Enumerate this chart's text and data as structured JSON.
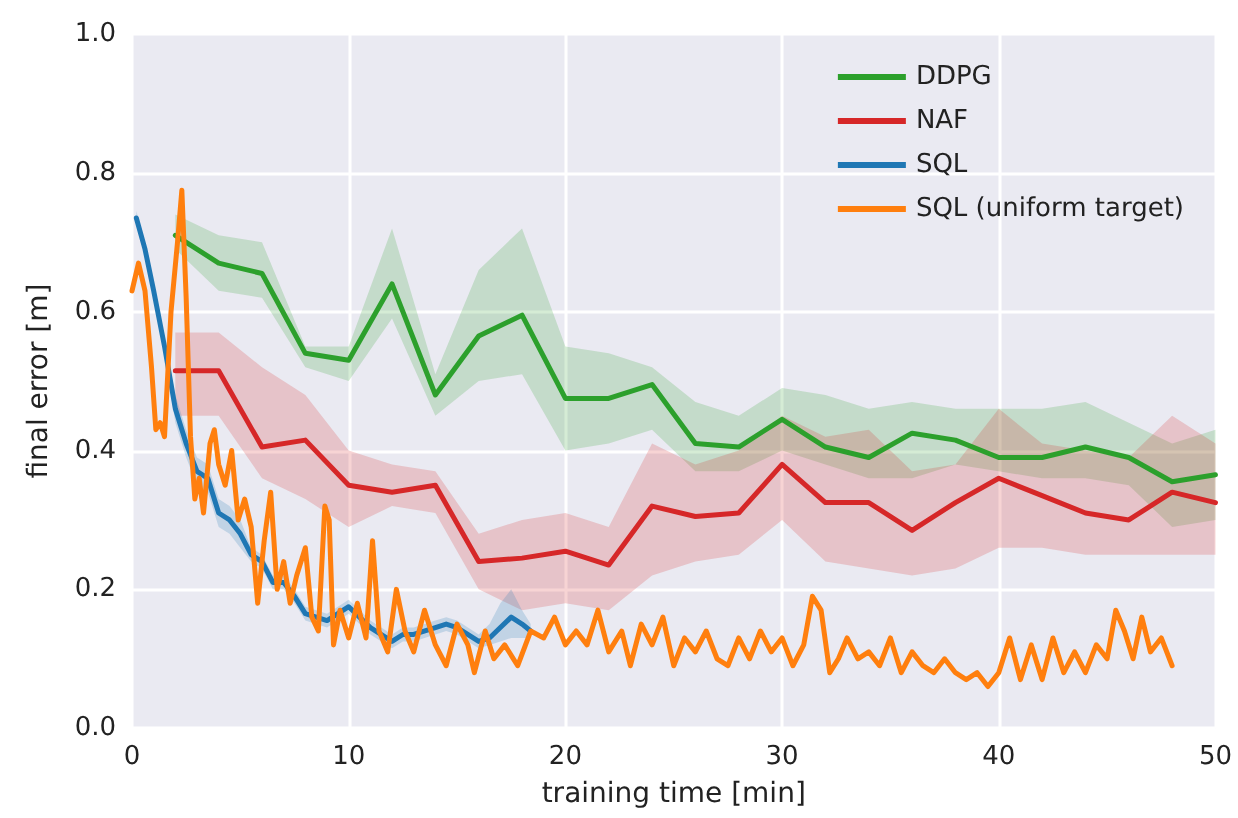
{
  "chart_data": {
    "type": "line",
    "xlabel": "training time [min]",
    "ylabel": "final error [m]",
    "xlim": [
      0,
      50
    ],
    "xticks": [
      0,
      10,
      20,
      30,
      40,
      50
    ],
    "ylim": [
      0,
      1
    ],
    "yticks": [
      {
        "value": 0,
        "label": "0.0"
      },
      {
        "value": 0.2,
        "label": "0.2"
      },
      {
        "value": 0.4,
        "label": "0.4"
      },
      {
        "value": 0.6,
        "label": "0.6"
      },
      {
        "value": 0.8,
        "label": "0.8"
      },
      {
        "value": 1,
        "label": "1.0"
      }
    ],
    "grid": true,
    "legend": "top right",
    "marker": "none",
    "line_style": "solid",
    "series": [
      {
        "name": "DDPG",
        "color": "#2ca02c",
        "x": [
          2,
          4,
          6,
          8,
          10,
          12,
          14,
          16,
          18,
          20,
          22,
          24,
          26,
          28,
          30,
          32,
          34,
          36,
          38,
          40,
          42,
          44,
          46,
          48,
          50
        ],
        "values": [
          0.71,
          0.67,
          0.655,
          0.54,
          0.53,
          0.64,
          0.48,
          0.565,
          0.595,
          0.475,
          0.475,
          0.495,
          0.41,
          0.405,
          0.445,
          0.405,
          0.39,
          0.425,
          0.415,
          0.39,
          0.39,
          0.405,
          0.39,
          0.355,
          0.365
        ],
        "lower": [
          0.69,
          0.63,
          0.62,
          0.52,
          0.5,
          0.59,
          0.45,
          0.5,
          0.51,
          0.4,
          0.41,
          0.43,
          0.37,
          0.37,
          0.4,
          0.38,
          0.36,
          0.36,
          0.38,
          0.37,
          0.36,
          0.36,
          0.35,
          0.29,
          0.3
        ],
        "upper": [
          0.74,
          0.71,
          0.7,
          0.55,
          0.55,
          0.72,
          0.51,
          0.66,
          0.72,
          0.55,
          0.54,
          0.52,
          0.47,
          0.45,
          0.49,
          0.48,
          0.46,
          0.47,
          0.46,
          0.46,
          0.46,
          0.47,
          0.44,
          0.41,
          0.43
        ]
      },
      {
        "name": "NAF",
        "color": "#d62728",
        "x": [
          2,
          4,
          6,
          8,
          10,
          12,
          14,
          16,
          18,
          20,
          22,
          24,
          26,
          28,
          30,
          32,
          34,
          36,
          38,
          40,
          42,
          44,
          46,
          48,
          50
        ],
        "values": [
          0.515,
          0.515,
          0.405,
          0.415,
          0.35,
          0.34,
          0.35,
          0.24,
          0.245,
          0.255,
          0.235,
          0.32,
          0.305,
          0.31,
          0.38,
          0.325,
          0.325,
          0.285,
          0.325,
          0.36,
          0.335,
          0.31,
          0.3,
          0.34,
          0.325
        ],
        "lower": [
          0.45,
          0.45,
          0.36,
          0.33,
          0.29,
          0.32,
          0.31,
          0.2,
          0.17,
          0.18,
          0.17,
          0.22,
          0.24,
          0.25,
          0.3,
          0.24,
          0.23,
          0.22,
          0.23,
          0.26,
          0.26,
          0.25,
          0.25,
          0.25,
          0.25
        ],
        "upper": [
          0.57,
          0.57,
          0.52,
          0.48,
          0.4,
          0.38,
          0.37,
          0.28,
          0.3,
          0.31,
          0.29,
          0.41,
          0.38,
          0.4,
          0.45,
          0.42,
          0.43,
          0.37,
          0.38,
          0.46,
          0.41,
          0.4,
          0.39,
          0.45,
          0.41
        ]
      },
      {
        "name": "SQL",
        "color": "#1f77b4",
        "x": [
          0.2,
          0.6,
          1,
          1.5,
          2,
          2.5,
          3,
          3.5,
          4,
          4.5,
          5,
          5.5,
          6,
          6.5,
          7,
          7.5,
          8,
          9,
          9.5,
          10,
          10.5,
          11,
          12,
          12.5,
          13,
          14,
          14.5,
          15,
          16,
          16.5,
          17,
          17.5,
          18,
          18.4
        ],
        "values": [
          0.735,
          0.69,
          0.63,
          0.55,
          0.46,
          0.41,
          0.37,
          0.36,
          0.31,
          0.3,
          0.28,
          0.25,
          0.24,
          0.21,
          0.21,
          0.19,
          0.165,
          0.155,
          0.165,
          0.175,
          0.16,
          0.145,
          0.125,
          0.135,
          0.135,
          0.145,
          0.15,
          0.145,
          0.125,
          0.13,
          0.145,
          0.16,
          0.15,
          0.14
        ],
        "lower": [
          0.725,
          0.68,
          0.62,
          0.54,
          0.44,
          0.39,
          0.35,
          0.34,
          0.29,
          0.28,
          0.26,
          0.24,
          0.23,
          0.2,
          0.2,
          0.18,
          0.155,
          0.145,
          0.155,
          0.165,
          0.15,
          0.135,
          0.115,
          0.125,
          0.125,
          0.135,
          0.14,
          0.135,
          0.115,
          0.12,
          0.125,
          0.13,
          0.13,
          0.13
        ],
        "upper": [
          0.745,
          0.7,
          0.64,
          0.56,
          0.48,
          0.43,
          0.39,
          0.38,
          0.33,
          0.32,
          0.3,
          0.26,
          0.25,
          0.22,
          0.22,
          0.2,
          0.175,
          0.165,
          0.175,
          0.185,
          0.17,
          0.155,
          0.135,
          0.145,
          0.145,
          0.155,
          0.16,
          0.155,
          0.135,
          0.15,
          0.18,
          0.2,
          0.17,
          0.15
        ]
      },
      {
        "name": "SQL (uniform target)",
        "color": "#ff7f0e",
        "x": [
          0,
          0.3,
          0.6,
          0.9,
          1.1,
          1.3,
          1.5,
          1.8,
          2.1,
          2.3,
          2.5,
          2.7,
          2.9,
          3.1,
          3.3,
          3.6,
          3.8,
          4,
          4.3,
          4.6,
          4.9,
          5.2,
          5.5,
          5.8,
          6.1,
          6.4,
          6.7,
          7,
          7.3,
          7.6,
          8,
          8.3,
          8.6,
          8.9,
          9.1,
          9.3,
          9.6,
          10,
          10.4,
          10.8,
          11.1,
          11.4,
          11.8,
          12.2,
          12.6,
          13,
          13.5,
          14,
          14.5,
          15,
          15.5,
          15.8,
          16.3,
          16.7,
          17.2,
          17.8,
          18.4,
          19,
          19.5,
          20,
          20.5,
          21,
          21.5,
          22,
          22.6,
          23,
          23.5,
          24,
          24.5,
          25,
          25.5,
          26,
          26.5,
          27,
          27.5,
          28,
          28.5,
          29,
          29.5,
          30,
          30.5,
          31,
          31.4,
          31.8,
          32.2,
          32.6,
          33,
          33.5,
          34,
          34.5,
          35,
          35.5,
          36,
          36.5,
          37,
          37.5,
          38,
          38.5,
          39,
          39.5,
          40,
          40.5,
          41,
          41.5,
          42,
          42.5,
          43,
          43.5,
          44,
          44.5,
          45,
          45.4,
          45.8,
          46.2,
          46.6,
          47,
          47.5,
          48
        ],
        "values": [
          0.63,
          0.67,
          0.63,
          0.52,
          0.43,
          0.44,
          0.42,
          0.6,
          0.7,
          0.775,
          0.62,
          0.42,
          0.33,
          0.36,
          0.31,
          0.41,
          0.43,
          0.38,
          0.35,
          0.4,
          0.3,
          0.33,
          0.29,
          0.18,
          0.27,
          0.34,
          0.2,
          0.24,
          0.18,
          0.22,
          0.26,
          0.16,
          0.14,
          0.32,
          0.3,
          0.12,
          0.17,
          0.13,
          0.18,
          0.13,
          0.27,
          0.14,
          0.11,
          0.2,
          0.14,
          0.11,
          0.17,
          0.12,
          0.09,
          0.15,
          0.12,
          0.08,
          0.14,
          0.1,
          0.12,
          0.09,
          0.14,
          0.13,
          0.16,
          0.12,
          0.14,
          0.12,
          0.17,
          0.11,
          0.14,
          0.09,
          0.15,
          0.12,
          0.16,
          0.09,
          0.13,
          0.11,
          0.14,
          0.1,
          0.09,
          0.13,
          0.1,
          0.14,
          0.11,
          0.13,
          0.09,
          0.12,
          0.19,
          0.17,
          0.08,
          0.1,
          0.13,
          0.1,
          0.11,
          0.09,
          0.13,
          0.08,
          0.11,
          0.09,
          0.08,
          0.1,
          0.08,
          0.07,
          0.08,
          0.06,
          0.08,
          0.13,
          0.07,
          0.12,
          0.07,
          0.13,
          0.08,
          0.11,
          0.08,
          0.12,
          0.1,
          0.17,
          0.14,
          0.1,
          0.16,
          0.11,
          0.13,
          0.09
        ]
      }
    ]
  }
}
